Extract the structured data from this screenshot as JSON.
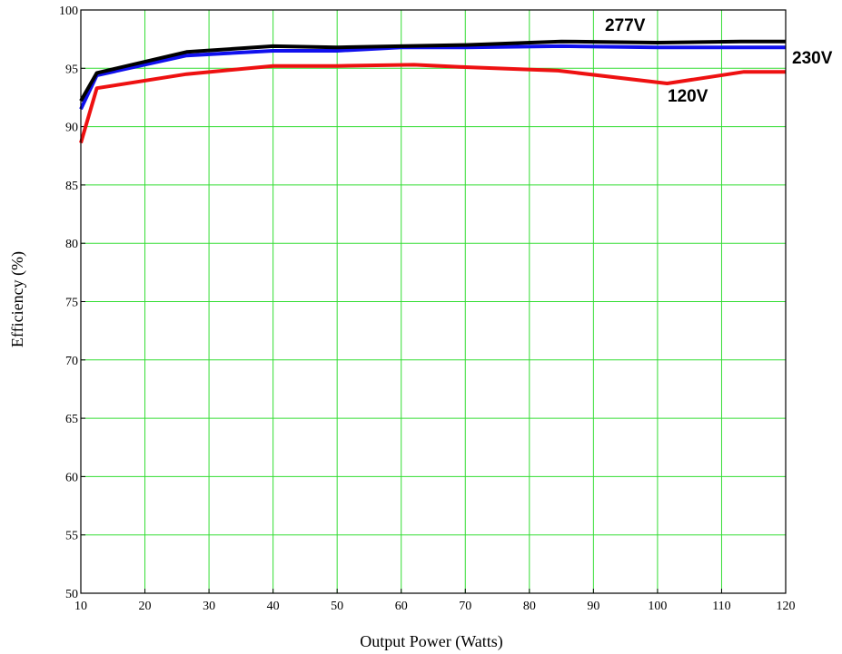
{
  "chart_data": {
    "type": "line",
    "title": "",
    "xlabel": "Output Power (Watts)",
    "ylabel": "Efficiency (%)",
    "xlim": [
      10,
      120
    ],
    "ylim": [
      50,
      100
    ],
    "xticks": [
      10,
      20,
      30,
      40,
      50,
      60,
      70,
      80,
      90,
      100,
      110,
      120
    ],
    "yticks": [
      50,
      55,
      60,
      65,
      70,
      75,
      80,
      85,
      90,
      95,
      100
    ],
    "grid": true,
    "grid_color": "#33dd33",
    "legend": "inline labels",
    "series": [
      {
        "name": "277V",
        "color": "#000000",
        "x": [
          10,
          12.5,
          26.5,
          40,
          50,
          60,
          70,
          85,
          100,
          113,
          120
        ],
        "y": [
          92.2,
          94.6,
          96.4,
          96.9,
          96.8,
          96.9,
          97.0,
          97.3,
          97.2,
          97.3,
          97.3
        ]
      },
      {
        "name": "230V",
        "color": "#1010ee",
        "x": [
          10,
          12.5,
          26.5,
          40,
          50,
          60,
          70,
          85,
          100,
          113,
          120
        ],
        "y": [
          91.5,
          94.4,
          96.1,
          96.5,
          96.5,
          96.8,
          96.8,
          96.9,
          96.8,
          96.8,
          96.8
        ]
      },
      {
        "name": "120V",
        "color": "#ee1111",
        "x": [
          10,
          12.5,
          26.5,
          40,
          50,
          62,
          70,
          84.5,
          101.5,
          113.5,
          120
        ],
        "y": [
          88.6,
          93.3,
          94.5,
          95.2,
          95.2,
          95.3,
          95.1,
          94.8,
          93.7,
          94.7,
          94.7
        ]
      }
    ]
  }
}
